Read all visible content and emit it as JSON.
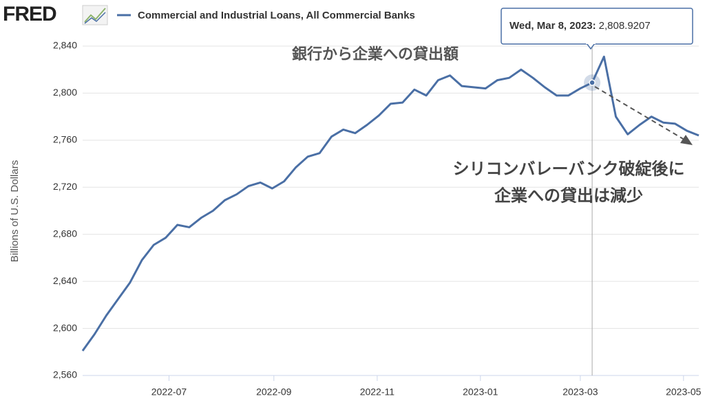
{
  "chart_data": {
    "type": "line",
    "logo": "FRED",
    "y_label": "Billions of U.S. Dollars",
    "tooltip_date": "Wed, Mar 8, 2023:",
    "annotations": [
      "銀行から企業への貸出額",
      "シリコンバレーバンク破綻後に",
      "企業への貸出は減少"
    ],
    "x": [
      0,
      1,
      2,
      3,
      4,
      5,
      6,
      7,
      8,
      9,
      10,
      11,
      12,
      13,
      14,
      15,
      16,
      17,
      18,
      19,
      20,
      21,
      22,
      23,
      24,
      25,
      26,
      27,
      28,
      29,
      30,
      31,
      32,
      33,
      34,
      35,
      36,
      37,
      38,
      39,
      40,
      41,
      42,
      43,
      44,
      45,
      46,
      47,
      48,
      49,
      50,
      51,
      52
    ],
    "xlim": [
      0,
      52
    ],
    "xticks": [
      {
        "value": 7.29,
        "label": "2022-07"
      },
      {
        "value": 16.14,
        "label": "2022-09"
      },
      {
        "value": 24.86,
        "label": "2022-11"
      },
      {
        "value": 33.57,
        "label": "2023-01"
      },
      {
        "value": 42.0,
        "label": "2023-03"
      },
      {
        "value": 50.71,
        "label": "2023-05"
      }
    ],
    "ylim": [
      2560,
      2840
    ],
    "yticks": [
      {
        "value": 2560,
        "label": "2,560"
      },
      {
        "value": 2600,
        "label": "2,600"
      },
      {
        "value": 2640,
        "label": "2,640"
      },
      {
        "value": 2680,
        "label": "2,680"
      },
      {
        "value": 2720,
        "label": "2,720"
      },
      {
        "value": 2760,
        "label": "2,760"
      },
      {
        "value": 2800,
        "label": "2,800"
      },
      {
        "value": 2840,
        "label": "2,840"
      }
    ],
    "grid": true,
    "series": [
      {
        "name": "Commercial and Industrial Loans, All Commercial Banks",
        "color": "#4a6fa5",
        "values": [
          2581,
          2595,
          2611,
          2625,
          2639,
          2658,
          2671,
          2677,
          2688,
          2686,
          2694,
          2700,
          2709,
          2714,
          2721,
          2724,
          2719,
          2725,
          2737,
          2746,
          2749,
          2763,
          2769,
          2766,
          2773,
          2781,
          2791,
          2792,
          2803,
          2798,
          2811,
          2815,
          2806,
          2805,
          2804,
          2811,
          2813,
          2820,
          2813,
          2805,
          2798,
          2798,
          2804,
          2808.9207,
          2831,
          2780,
          2765,
          2773,
          2780,
          2775,
          2774,
          2768,
          2764
        ],
        "value_labels": [
          null,
          null,
          null,
          null,
          null,
          null,
          null,
          null,
          null,
          null,
          null,
          null,
          null,
          null,
          null,
          null,
          null,
          null,
          null,
          null,
          null,
          null,
          null,
          null,
          null,
          null,
          null,
          null,
          null,
          null,
          null,
          null,
          null,
          null,
          null,
          null,
          null,
          null,
          null,
          null,
          null,
          null,
          null,
          "2,808.9207",
          null,
          null,
          null,
          null,
          null,
          null,
          null,
          null,
          null
        ]
      }
    ]
  }
}
